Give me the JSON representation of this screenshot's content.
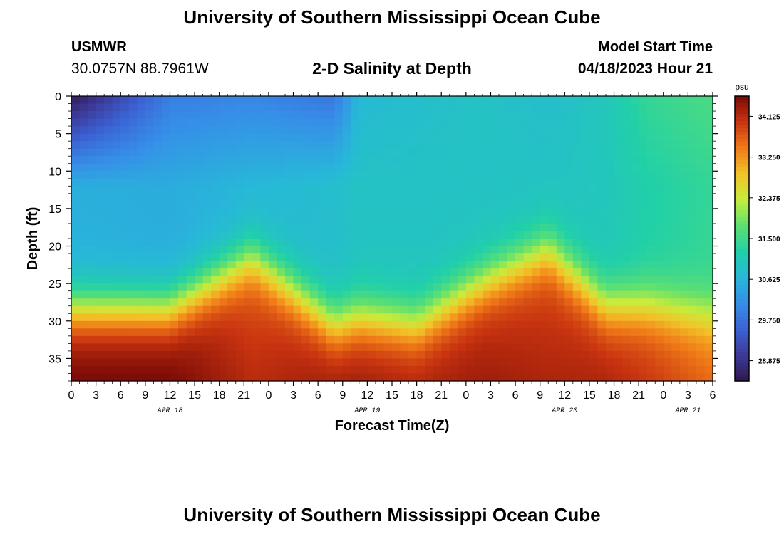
{
  "header": {
    "title": "University of Southern Mississippi Ocean Cube",
    "station_id": "USMWR",
    "coordinates": "30.0757N  88.7961W",
    "plot_title": "2-D Salinity at Depth",
    "start_label": "Model Start Time",
    "start_value": "04/18/2023 Hour 21"
  },
  "footer": {
    "title": "University of Southern Mississippi Ocean Cube"
  },
  "chart_data": {
    "type": "heatmap",
    "title": "2-D Salinity at Depth",
    "xlabel": "Forecast Time(Z)",
    "ylabel": "Depth (ft)",
    "x_ticks": [
      "0",
      "3",
      "6",
      "9",
      "12",
      "15",
      "18",
      "21",
      "0",
      "3",
      "6",
      "9",
      "12",
      "15",
      "18",
      "21",
      "0",
      "3",
      "6",
      "9",
      "12",
      "15",
      "18",
      "21",
      "0",
      "3",
      "6"
    ],
    "x_tick_hours": [
      0,
      3,
      6,
      9,
      12,
      15,
      18,
      21,
      24,
      27,
      30,
      33,
      36,
      39,
      42,
      45,
      48,
      51,
      54,
      57,
      60,
      63,
      66,
      69,
      72,
      75,
      78
    ],
    "x_range_hours": [
      0,
      78
    ],
    "date_labels": [
      {
        "label": "APR 18",
        "hour": 12
      },
      {
        "label": "APR 19",
        "hour": 36
      },
      {
        "label": "APR 20",
        "hour": 60
      },
      {
        "label": "APR 21",
        "hour": 75
      }
    ],
    "y_ticks": [
      0,
      5,
      10,
      15,
      20,
      25,
      30,
      35
    ],
    "y_range": [
      0,
      38
    ],
    "y_inverted": true,
    "colorbar": {
      "unit": "psu",
      "ticks": [
        "34.125",
        "33.250",
        "32.375",
        "31.500",
        "30.625",
        "29.750",
        "28.875"
      ],
      "range": [
        28.44,
        34.56
      ],
      "colors": [
        "#2f1850",
        "#3d3a98",
        "#3b63d4",
        "#368fe8",
        "#27b8d8",
        "#21d0a8",
        "#5ee070",
        "#c8ec3c",
        "#f2c228",
        "#f07a18",
        "#c83410",
        "#7a0a06"
      ]
    },
    "profiles": {
      "hours": [
        0,
        12,
        22,
        32,
        35,
        42,
        50,
        58,
        65,
        70,
        78
      ],
      "thermocline_depth_ft": [
        28.5,
        28.5,
        21.5,
        30.5,
        29.5,
        30.5,
        25.0,
        20.5,
        28.0,
        28.0,
        29.5
      ],
      "surface_psu": [
        28.5,
        29.9,
        30.0,
        29.8,
        30.7,
        30.8,
        30.9,
        30.8,
        31.0,
        31.4,
        31.6
      ],
      "layer_psu": [
        30.55,
        30.5,
        30.65,
        30.8,
        30.9,
        30.9,
        30.9,
        30.9,
        31.0,
        31.2,
        31.4
      ],
      "bottom_psu": [
        34.6,
        34.6,
        34.1,
        34.3,
        34.3,
        34.2,
        34.3,
        34.2,
        34.2,
        34.0,
        33.6
      ]
    }
  }
}
